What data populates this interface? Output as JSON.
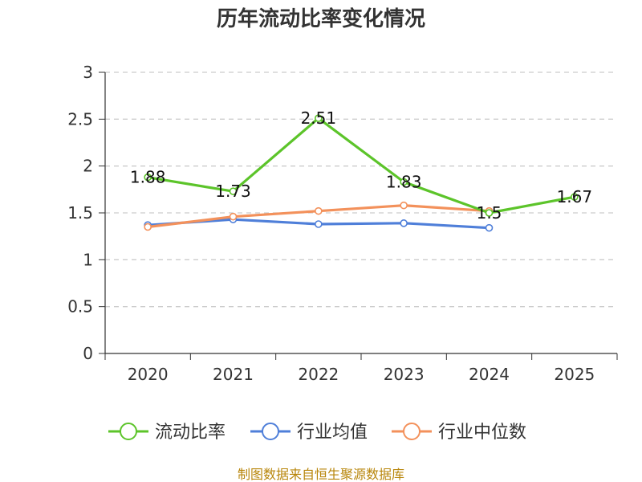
{
  "chart_data": {
    "type": "line",
    "title": "历年流动比率变化情况",
    "categories": [
      "2020",
      "2021",
      "2022",
      "2023",
      "2024",
      "2025"
    ],
    "ylim": [
      0,
      3
    ],
    "yticks": [
      "0",
      "0.5",
      "1",
      "1.5",
      "2",
      "2.5",
      "3"
    ],
    "ytick_values": [
      0,
      0.5,
      1,
      1.5,
      2,
      2.5,
      3
    ],
    "grid": "horizontal-dashed",
    "legend_position": "bottom",
    "series": [
      {
        "name": "流动比率",
        "color": "#5cc42a",
        "values": [
          1.88,
          1.73,
          2.51,
          1.83,
          1.5,
          1.67
        ],
        "labels": [
          "1.88",
          "1.73",
          "2.51",
          "1.83",
          "1.5",
          "1.67"
        ]
      },
      {
        "name": "行业均值",
        "color": "#4f7fd9",
        "values": [
          1.37,
          1.43,
          1.38,
          1.39,
          1.34,
          null
        ]
      },
      {
        "name": "行业中位数",
        "color": "#f3915b",
        "values": [
          1.35,
          1.46,
          1.52,
          1.58,
          1.52,
          null
        ]
      }
    ]
  },
  "source_text": "制图数据来自恒生聚源数据库"
}
